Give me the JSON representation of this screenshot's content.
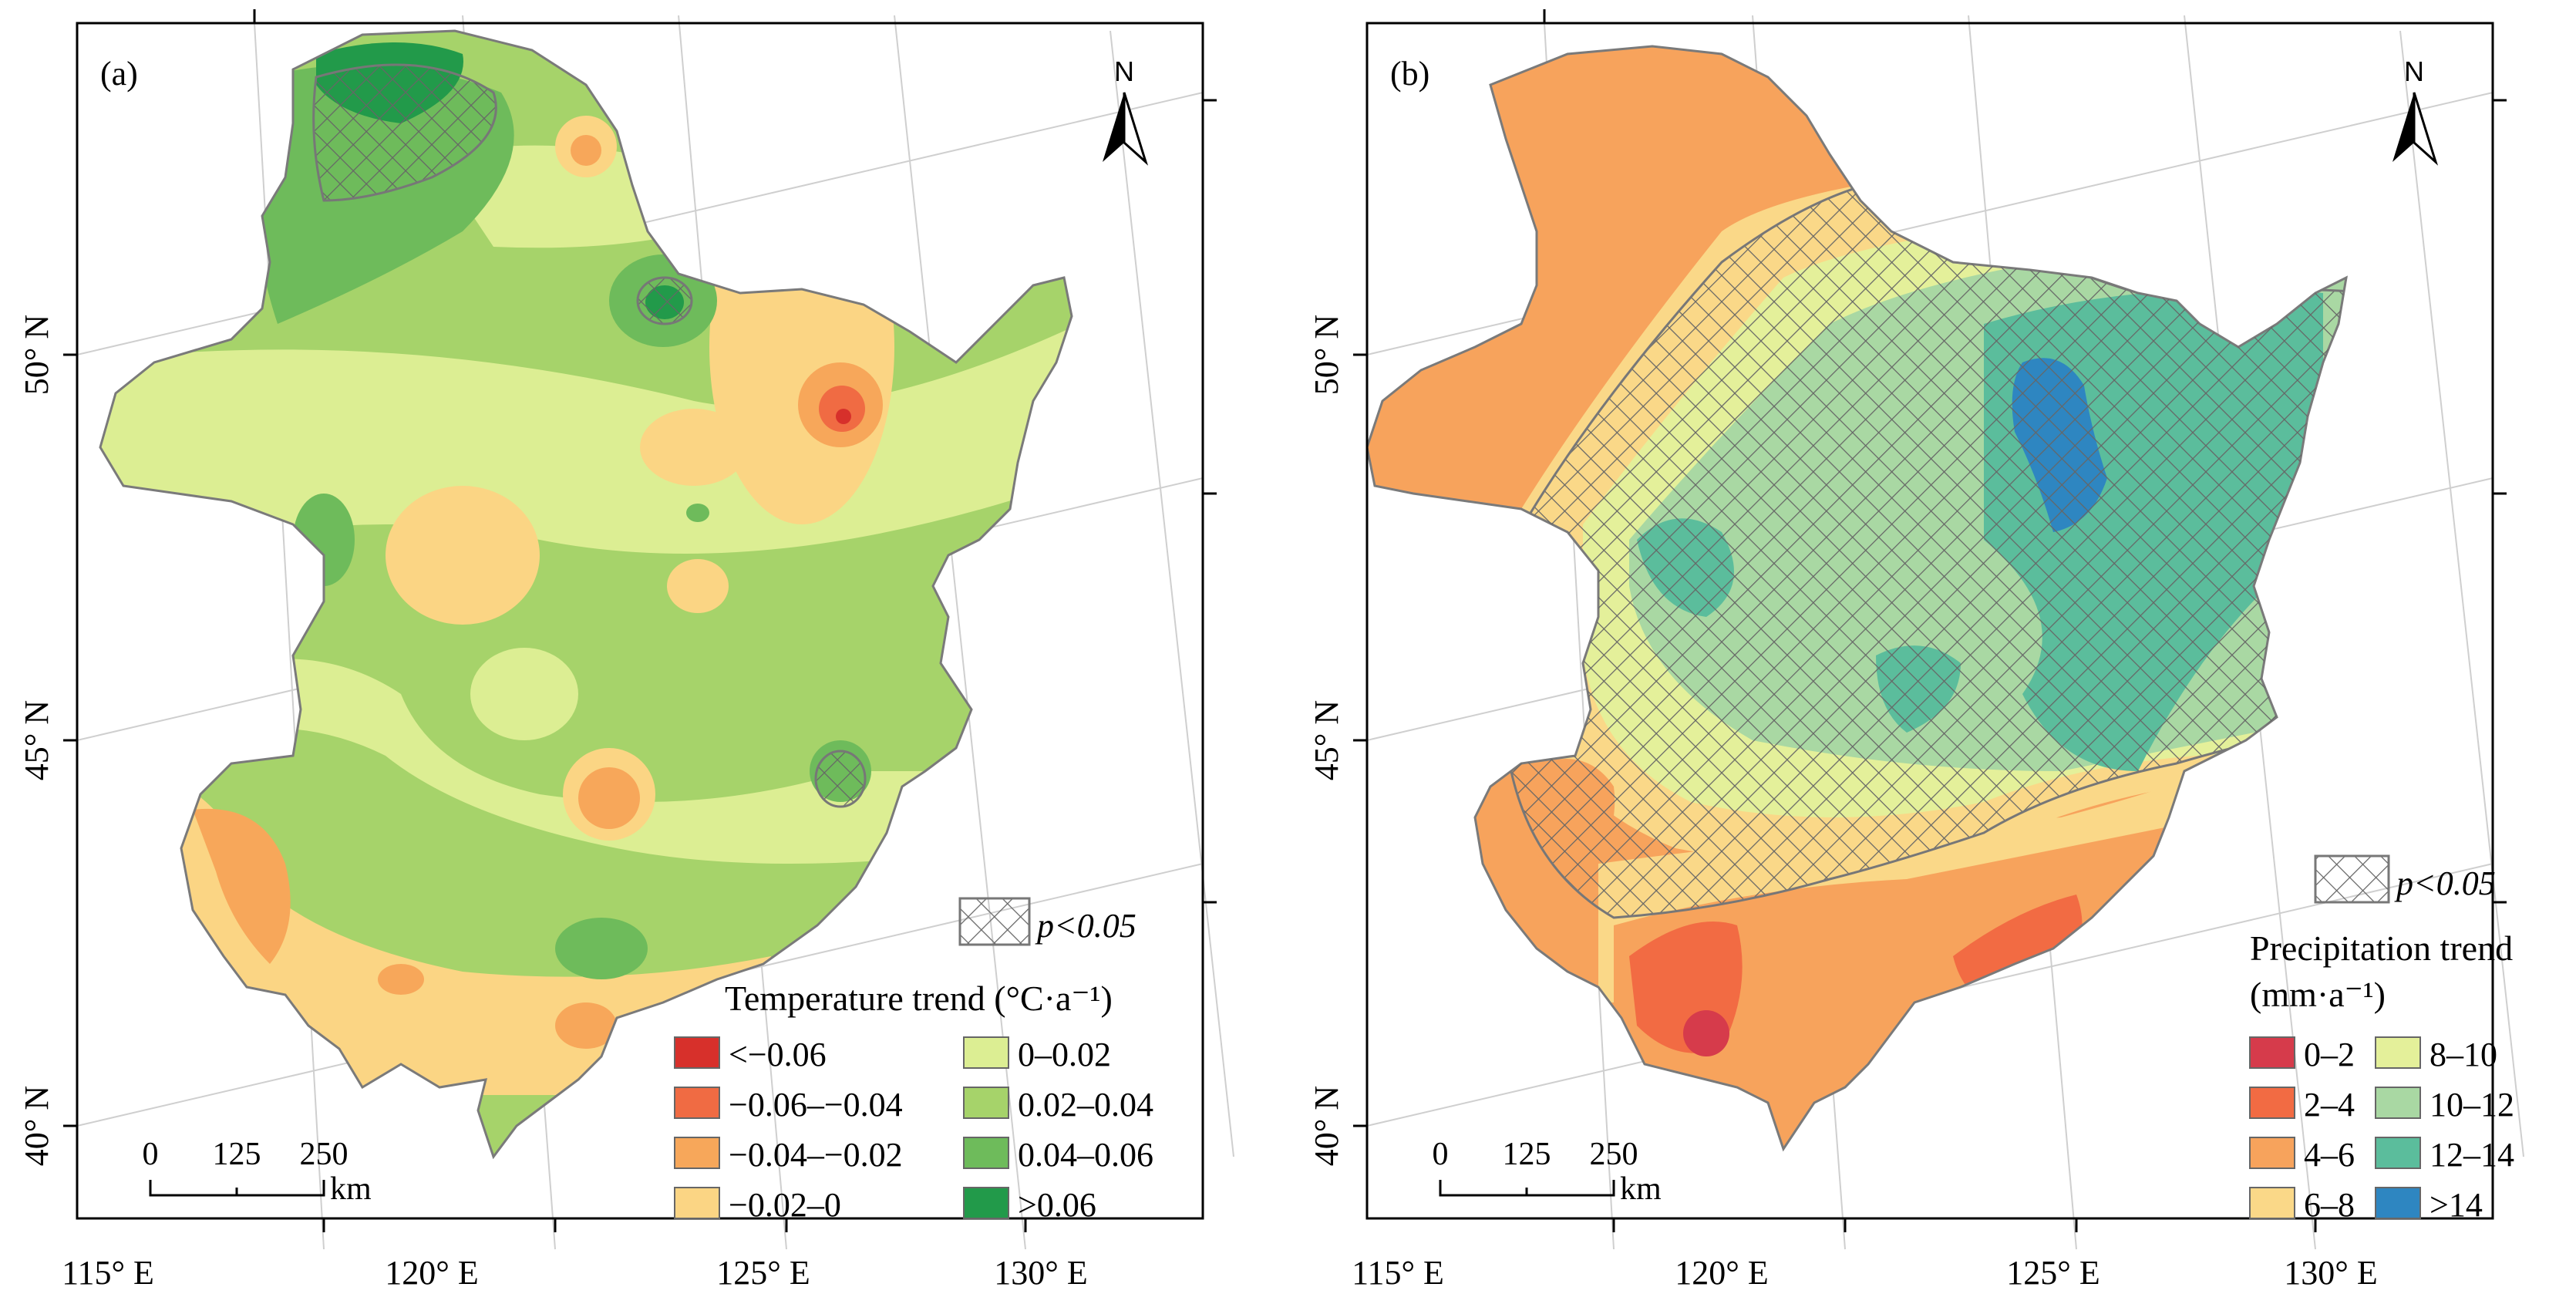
{
  "panel_a": {
    "label": "(a)",
    "north": "N",
    "significance_label": "p<0.05",
    "legend_title": "Temperature trend (°C·a⁻¹)",
    "legend_items": [
      {
        "label": "<−0.06",
        "color": "#d7302b"
      },
      {
        "label": "−0.06–−0.04",
        "color": "#f06b43"
      },
      {
        "label": "−0.04–−0.02",
        "color": "#f7a75a"
      },
      {
        "label": "−0.02–0",
        "color": "#fbd584"
      },
      {
        "label": "0–0.02",
        "color": "#dcee93"
      },
      {
        "label": "0.02–0.04",
        "color": "#a6d36a"
      },
      {
        "label": "0.04–0.06",
        "color": "#6ebb5b"
      },
      {
        "label": ">0.06",
        "color": "#229a4a"
      }
    ],
    "scale_labels": [
      "0",
      "125",
      "250"
    ],
    "scale_unit": "km",
    "lat_labels": [
      "50° N",
      "45° N",
      "40° N"
    ],
    "lon_labels": [
      "115° E",
      "120° E",
      "125° E",
      "130° E"
    ]
  },
  "panel_b": {
    "label": "(b)",
    "north": "N",
    "significance_label": "p<0.05",
    "legend_title_line1": "Precipitation trend",
    "legend_title_line2": "(mm·a⁻¹)",
    "legend_items": [
      {
        "label": "0–2",
        "color": "#d63b4b"
      },
      {
        "label": "2–4",
        "color": "#f26b43"
      },
      {
        "label": "4–6",
        "color": "#f7a35c"
      },
      {
        "label": "6–8",
        "color": "#fad888"
      },
      {
        "label": "8–10",
        "color": "#e4f09a"
      },
      {
        "label": "10–12",
        "color": "#a9d8a3"
      },
      {
        "label": "12–14",
        "color": "#5bbd9c"
      },
      {
        "label": ">14",
        "color": "#2e86c1"
      }
    ],
    "scale_labels": [
      "0",
      "125",
      "250"
    ],
    "scale_unit": "km",
    "lat_labels": [
      "50° N",
      "45° N",
      "40° N"
    ],
    "lon_labels": [
      "115° E",
      "120° E",
      "125° E",
      "130° E"
    ]
  }
}
